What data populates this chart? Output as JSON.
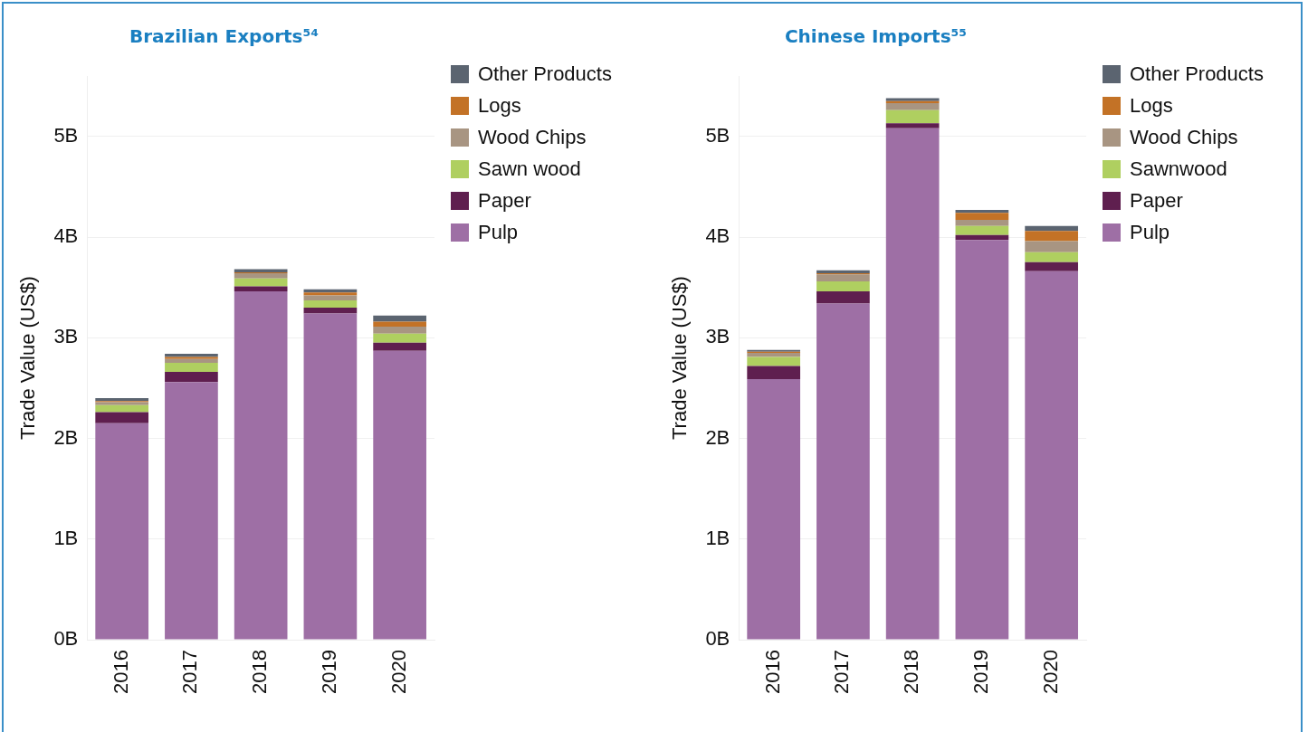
{
  "chart_data": [
    {
      "type": "bar",
      "stacked": true,
      "title": "Brazilian Exports⁵⁴",
      "ylabel": "Trade Value (US$)",
      "categories": [
        "2016",
        "2017",
        "2018",
        "2019",
        "2020"
      ],
      "series": [
        {
          "name": "Pulp",
          "color": "#9e6fa5",
          "values": [
            2.15,
            2.56,
            3.46,
            3.24,
            2.87
          ]
        },
        {
          "name": "Paper",
          "color": "#5f1f4f",
          "values": [
            0.11,
            0.1,
            0.05,
            0.06,
            0.08
          ]
        },
        {
          "name": "Sawn wood",
          "color": "#afcf60",
          "values": [
            0.07,
            0.09,
            0.08,
            0.07,
            0.09
          ]
        },
        {
          "name": "Wood Chips",
          "color": "#a89582",
          "values": [
            0.03,
            0.04,
            0.05,
            0.05,
            0.07
          ]
        },
        {
          "name": "Logs",
          "color": "#c37226",
          "values": [
            0.01,
            0.02,
            0.01,
            0.03,
            0.05
          ]
        },
        {
          "name": "Other Products",
          "color": "#5b6470",
          "values": [
            0.03,
            0.03,
            0.03,
            0.03,
            0.06
          ]
        }
      ],
      "ylim": [
        0,
        5.6
      ],
      "yticks": [
        {
          "value": 0,
          "label": "0B"
        },
        {
          "value": 1,
          "label": "1B"
        },
        {
          "value": 2,
          "label": "2B"
        },
        {
          "value": 3,
          "label": "3B"
        },
        {
          "value": 4,
          "label": "4B"
        },
        {
          "value": 5,
          "label": "5B"
        }
      ],
      "grid": "y",
      "legend": "right"
    },
    {
      "type": "bar",
      "stacked": true,
      "title": "Chinese Imports⁵⁵",
      "ylabel": "Trade Value (US$)",
      "categories": [
        "2016",
        "2017",
        "2018",
        "2019",
        "2020"
      ],
      "series": [
        {
          "name": "Pulp",
          "color": "#9e6fa5",
          "values": [
            2.59,
            3.34,
            5.08,
            3.97,
            3.66
          ]
        },
        {
          "name": "Paper",
          "color": "#5f1f4f",
          "values": [
            0.13,
            0.12,
            0.05,
            0.05,
            0.09
          ]
        },
        {
          "name": "Sawnwood",
          "color": "#afcf60",
          "values": [
            0.09,
            0.1,
            0.13,
            0.09,
            0.1
          ]
        },
        {
          "name": "Wood Chips",
          "color": "#a89582",
          "values": [
            0.04,
            0.07,
            0.07,
            0.06,
            0.11
          ]
        },
        {
          "name": "Logs",
          "color": "#c37226",
          "values": [
            0.01,
            0.01,
            0.02,
            0.07,
            0.1
          ]
        },
        {
          "name": "Other Products",
          "color": "#5b6470",
          "values": [
            0.02,
            0.03,
            0.03,
            0.03,
            0.05
          ]
        }
      ],
      "ylim": [
        0,
        5.6
      ],
      "yticks": [
        {
          "value": 0,
          "label": "0B"
        },
        {
          "value": 1,
          "label": "1B"
        },
        {
          "value": 2,
          "label": "2B"
        },
        {
          "value": 3,
          "label": "3B"
        },
        {
          "value": 4,
          "label": "4B"
        },
        {
          "value": 5,
          "label": "5B"
        }
      ],
      "grid": "y",
      "legend": "right"
    }
  ]
}
